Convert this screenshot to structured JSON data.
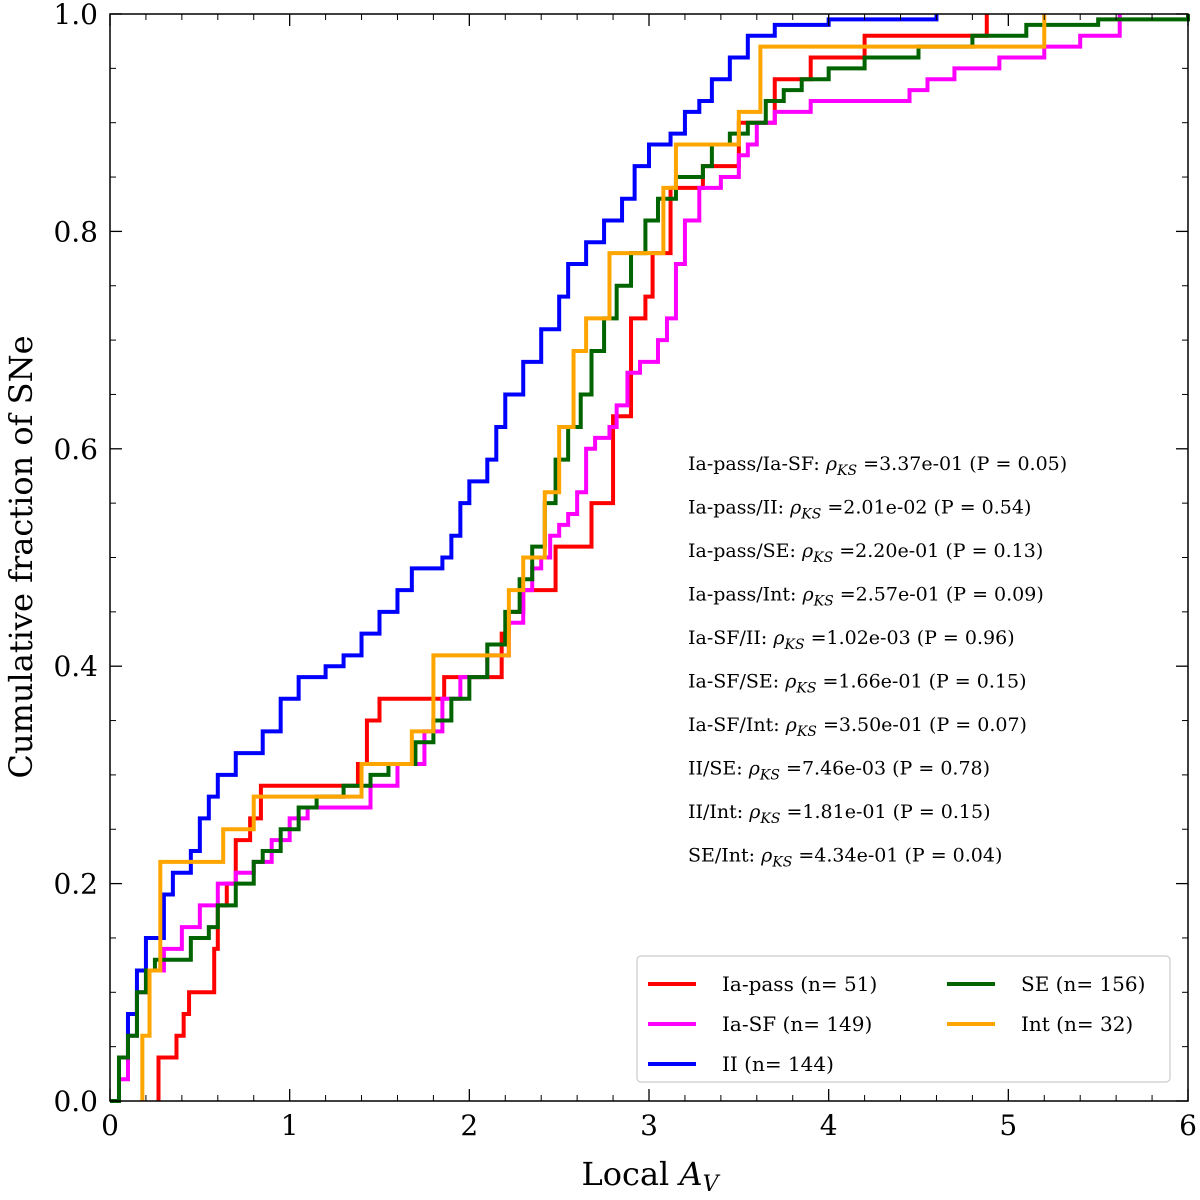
{
  "chart_data": {
    "type": "line",
    "title": "",
    "xlabel": "Local A_V",
    "xlabel_plain": "Local ",
    "xlabel_math": "A",
    "xlabel_sub": "V",
    "ylabel": "Cumulative fraction of SNe",
    "xlim": [
      0,
      6
    ],
    "ylim": [
      0,
      1.0
    ],
    "xticks": [
      0,
      1,
      2,
      3,
      4,
      5,
      6
    ],
    "xtick_labels": [
      "0",
      "1",
      "2",
      "3",
      "4",
      "5",
      "6"
    ],
    "yticks": [
      0.0,
      0.2,
      0.4,
      0.6,
      0.8,
      1.0
    ],
    "ytick_labels": [
      "0.0",
      "0.2",
      "0.4",
      "0.6",
      "0.8",
      "1.0"
    ],
    "legend_position": "bottom-right",
    "series": [
      {
        "name": "Ia-pass",
        "label": "Ia-pass (n= 51)",
        "color": "#ff0000",
        "points": [
          [
            0.27,
            0
          ],
          [
            0.27,
            0.04
          ],
          [
            0.37,
            0.04
          ],
          [
            0.37,
            0.06
          ],
          [
            0.41,
            0.06
          ],
          [
            0.41,
            0.08
          ],
          [
            0.44,
            0.08
          ],
          [
            0.44,
            0.1
          ],
          [
            0.58,
            0.1
          ],
          [
            0.58,
            0.14
          ],
          [
            0.6,
            0.14
          ],
          [
            0.6,
            0.18
          ],
          [
            0.65,
            0.18
          ],
          [
            0.65,
            0.2
          ],
          [
            0.7,
            0.2
          ],
          [
            0.7,
            0.24
          ],
          [
            0.78,
            0.24
          ],
          [
            0.78,
            0.26
          ],
          [
            0.84,
            0.26
          ],
          [
            0.84,
            0.29
          ],
          [
            1.38,
            0.29
          ],
          [
            1.38,
            0.31
          ],
          [
            1.43,
            0.31
          ],
          [
            1.43,
            0.35
          ],
          [
            1.5,
            0.35
          ],
          [
            1.5,
            0.37
          ],
          [
            1.86,
            0.37
          ],
          [
            1.86,
            0.39
          ],
          [
            2.18,
            0.39
          ],
          [
            2.18,
            0.43
          ],
          [
            2.22,
            0.43
          ],
          [
            2.22,
            0.45
          ],
          [
            2.3,
            0.45
          ],
          [
            2.3,
            0.47
          ],
          [
            2.48,
            0.47
          ],
          [
            2.48,
            0.51
          ],
          [
            2.68,
            0.51
          ],
          [
            2.68,
            0.55
          ],
          [
            2.8,
            0.55
          ],
          [
            2.8,
            0.63
          ],
          [
            2.9,
            0.63
          ],
          [
            2.9,
            0.72
          ],
          [
            2.98,
            0.72
          ],
          [
            2.98,
            0.74
          ],
          [
            3.02,
            0.74
          ],
          [
            3.02,
            0.78
          ],
          [
            3.12,
            0.78
          ],
          [
            3.12,
            0.84
          ],
          [
            3.3,
            0.84
          ],
          [
            3.3,
            0.86
          ],
          [
            3.5,
            0.86
          ],
          [
            3.5,
            0.9
          ],
          [
            3.7,
            0.9
          ],
          [
            3.7,
            0.94
          ],
          [
            3.9,
            0.94
          ],
          [
            3.9,
            0.96
          ],
          [
            4.2,
            0.96
          ],
          [
            4.2,
            0.98
          ],
          [
            4.88,
            0.98
          ],
          [
            4.88,
            1.0
          ]
        ]
      },
      {
        "name": "Ia-SF",
        "label": "Ia-SF (n= 149)",
        "color": "#ff00ff",
        "points": [
          [
            0,
            0
          ],
          [
            0.05,
            0.02
          ],
          [
            0.1,
            0.06
          ],
          [
            0.15,
            0.1
          ],
          [
            0.2,
            0.12
          ],
          [
            0.3,
            0.14
          ],
          [
            0.4,
            0.16
          ],
          [
            0.5,
            0.18
          ],
          [
            0.6,
            0.2
          ],
          [
            0.7,
            0.21
          ],
          [
            0.8,
            0.22
          ],
          [
            0.9,
            0.24
          ],
          [
            1.0,
            0.26
          ],
          [
            1.1,
            0.27
          ],
          [
            1.35,
            0.27
          ],
          [
            1.45,
            0.29
          ],
          [
            1.6,
            0.31
          ],
          [
            1.75,
            0.34
          ],
          [
            1.85,
            0.37
          ],
          [
            1.95,
            0.39
          ],
          [
            2.1,
            0.41
          ],
          [
            2.22,
            0.44
          ],
          [
            2.3,
            0.47
          ],
          [
            2.35,
            0.49
          ],
          [
            2.4,
            0.5
          ],
          [
            2.45,
            0.52
          ],
          [
            2.5,
            0.53
          ],
          [
            2.55,
            0.54
          ],
          [
            2.6,
            0.56
          ],
          [
            2.65,
            0.6
          ],
          [
            2.7,
            0.61
          ],
          [
            2.78,
            0.62
          ],
          [
            2.82,
            0.64
          ],
          [
            2.88,
            0.67
          ],
          [
            2.95,
            0.68
          ],
          [
            3.05,
            0.7
          ],
          [
            3.1,
            0.72
          ],
          [
            3.15,
            0.77
          ],
          [
            3.2,
            0.81
          ],
          [
            3.28,
            0.84
          ],
          [
            3.4,
            0.85
          ],
          [
            3.5,
            0.87
          ],
          [
            3.55,
            0.88
          ],
          [
            3.6,
            0.9
          ],
          [
            3.7,
            0.91
          ],
          [
            3.9,
            0.92
          ],
          [
            4.3,
            0.92
          ],
          [
            4.45,
            0.93
          ],
          [
            4.55,
            0.94
          ],
          [
            4.7,
            0.95
          ],
          [
            4.95,
            0.96
          ],
          [
            5.2,
            0.97
          ],
          [
            5.4,
            0.98
          ],
          [
            5.62,
            1.0
          ]
        ]
      },
      {
        "name": "II",
        "label": "II (n= 144)",
        "color": "#0000ff",
        "points": [
          [
            0,
            0
          ],
          [
            0.05,
            0.04
          ],
          [
            0.1,
            0.08
          ],
          [
            0.15,
            0.12
          ],
          [
            0.2,
            0.15
          ],
          [
            0.3,
            0.19
          ],
          [
            0.35,
            0.21
          ],
          [
            0.45,
            0.23
          ],
          [
            0.5,
            0.26
          ],
          [
            0.55,
            0.28
          ],
          [
            0.6,
            0.3
          ],
          [
            0.7,
            0.32
          ],
          [
            0.85,
            0.34
          ],
          [
            0.95,
            0.37
          ],
          [
            1.05,
            0.39
          ],
          [
            1.2,
            0.4
          ],
          [
            1.3,
            0.41
          ],
          [
            1.4,
            0.43
          ],
          [
            1.5,
            0.45
          ],
          [
            1.6,
            0.47
          ],
          [
            1.68,
            0.49
          ],
          [
            1.85,
            0.5
          ],
          [
            1.9,
            0.52
          ],
          [
            1.95,
            0.55
          ],
          [
            2.0,
            0.57
          ],
          [
            2.1,
            0.59
          ],
          [
            2.15,
            0.62
          ],
          [
            2.2,
            0.65
          ],
          [
            2.3,
            0.68
          ],
          [
            2.4,
            0.71
          ],
          [
            2.5,
            0.74
          ],
          [
            2.55,
            0.77
          ],
          [
            2.65,
            0.79
          ],
          [
            2.75,
            0.81
          ],
          [
            2.85,
            0.83
          ],
          [
            2.92,
            0.86
          ],
          [
            3.0,
            0.88
          ],
          [
            3.12,
            0.89
          ],
          [
            3.2,
            0.91
          ],
          [
            3.28,
            0.92
          ],
          [
            3.35,
            0.94
          ],
          [
            3.45,
            0.96
          ],
          [
            3.55,
            0.98
          ],
          [
            3.7,
            0.99
          ],
          [
            4.0,
            0.995
          ],
          [
            4.6,
            1.0
          ]
        ]
      },
      {
        "name": "SE",
        "label": "SE (n= 156)",
        "color": "#006400",
        "points": [
          [
            0,
            0
          ],
          [
            0.05,
            0.04
          ],
          [
            0.1,
            0.06
          ],
          [
            0.15,
            0.1
          ],
          [
            0.2,
            0.12
          ],
          [
            0.25,
            0.13
          ],
          [
            0.35,
            0.13
          ],
          [
            0.45,
            0.15
          ],
          [
            0.55,
            0.16
          ],
          [
            0.6,
            0.18
          ],
          [
            0.7,
            0.2
          ],
          [
            0.8,
            0.22
          ],
          [
            0.85,
            0.23
          ],
          [
            0.95,
            0.25
          ],
          [
            1.05,
            0.27
          ],
          [
            1.15,
            0.28
          ],
          [
            1.3,
            0.29
          ],
          [
            1.45,
            0.3
          ],
          [
            1.55,
            0.31
          ],
          [
            1.7,
            0.33
          ],
          [
            1.8,
            0.35
          ],
          [
            1.9,
            0.37
          ],
          [
            2.0,
            0.39
          ],
          [
            2.1,
            0.42
          ],
          [
            2.2,
            0.45
          ],
          [
            2.28,
            0.48
          ],
          [
            2.35,
            0.51
          ],
          [
            2.42,
            0.55
          ],
          [
            2.48,
            0.59
          ],
          [
            2.55,
            0.62
          ],
          [
            2.62,
            0.65
          ],
          [
            2.68,
            0.69
          ],
          [
            2.75,
            0.72
          ],
          [
            2.82,
            0.75
          ],
          [
            2.9,
            0.78
          ],
          [
            2.98,
            0.81
          ],
          [
            3.05,
            0.83
          ],
          [
            3.15,
            0.85
          ],
          [
            3.3,
            0.86
          ],
          [
            3.35,
            0.88
          ],
          [
            3.45,
            0.89
          ],
          [
            3.55,
            0.9
          ],
          [
            3.65,
            0.92
          ],
          [
            3.75,
            0.93
          ],
          [
            3.85,
            0.94
          ],
          [
            4.0,
            0.95
          ],
          [
            4.2,
            0.96
          ],
          [
            4.5,
            0.97
          ],
          [
            4.8,
            0.98
          ],
          [
            5.1,
            0.99
          ],
          [
            5.5,
            0.995
          ],
          [
            6.0,
            1.0
          ]
        ]
      },
      {
        "name": "Int",
        "label": "Int (n= 32)",
        "color": "#ffa500",
        "points": [
          [
            0.18,
            0
          ],
          [
            0.18,
            0.06
          ],
          [
            0.22,
            0.06
          ],
          [
            0.22,
            0.12
          ],
          [
            0.28,
            0.12
          ],
          [
            0.28,
            0.22
          ],
          [
            0.63,
            0.22
          ],
          [
            0.63,
            0.25
          ],
          [
            0.8,
            0.25
          ],
          [
            0.8,
            0.28
          ],
          [
            1.4,
            0.28
          ],
          [
            1.4,
            0.31
          ],
          [
            1.68,
            0.31
          ],
          [
            1.68,
            0.34
          ],
          [
            1.8,
            0.34
          ],
          [
            1.8,
            0.41
          ],
          [
            2.22,
            0.41
          ],
          [
            2.22,
            0.47
          ],
          [
            2.3,
            0.47
          ],
          [
            2.3,
            0.5
          ],
          [
            2.42,
            0.5
          ],
          [
            2.42,
            0.56
          ],
          [
            2.5,
            0.56
          ],
          [
            2.5,
            0.62
          ],
          [
            2.58,
            0.62
          ],
          [
            2.58,
            0.69
          ],
          [
            2.65,
            0.69
          ],
          [
            2.65,
            0.72
          ],
          [
            2.78,
            0.72
          ],
          [
            2.78,
            0.78
          ],
          [
            3.08,
            0.78
          ],
          [
            3.08,
            0.84
          ],
          [
            3.15,
            0.84
          ],
          [
            3.15,
            0.88
          ],
          [
            3.5,
            0.88
          ],
          [
            3.5,
            0.91
          ],
          [
            3.62,
            0.91
          ],
          [
            3.62,
            0.97
          ],
          [
            5.2,
            0.97
          ],
          [
            5.2,
            1.0
          ]
        ]
      }
    ],
    "annotations": [
      {
        "pair": "Ia-pass/Ia-SF:",
        "stat": "=3.37e-01",
        "p": "(P = 0.05)"
      },
      {
        "pair": "Ia-pass/II:",
        "stat": "=2.01e-02",
        "p": "(P = 0.54)"
      },
      {
        "pair": "Ia-pass/SE:",
        "stat": "=2.20e-01",
        "p": "(P = 0.13)"
      },
      {
        "pair": "Ia-pass/Int:",
        "stat": "=2.57e-01",
        "p": "(P = 0.09)"
      },
      {
        "pair": "Ia-SF/II:",
        "stat": "=1.02e-03",
        "p": "(P = 0.96)"
      },
      {
        "pair": "Ia-SF/SE:",
        "stat": "=1.66e-01",
        "p": "(P = 0.15)"
      },
      {
        "pair": "Ia-SF/Int:",
        "stat": "=3.50e-01",
        "p": "(P = 0.07)"
      },
      {
        "pair": "II/SE:",
        "stat": "=7.46e-03",
        "p": "(P = 0.78)"
      },
      {
        "pair": "II/Int:",
        "stat": "=1.81e-01",
        "p": "(P = 0.15)"
      },
      {
        "pair": "SE/Int:",
        "stat": "=4.34e-01",
        "p": "(P = 0.04)"
      }
    ],
    "rho_symbol": "ρ",
    "rho_subscript": "KS"
  }
}
